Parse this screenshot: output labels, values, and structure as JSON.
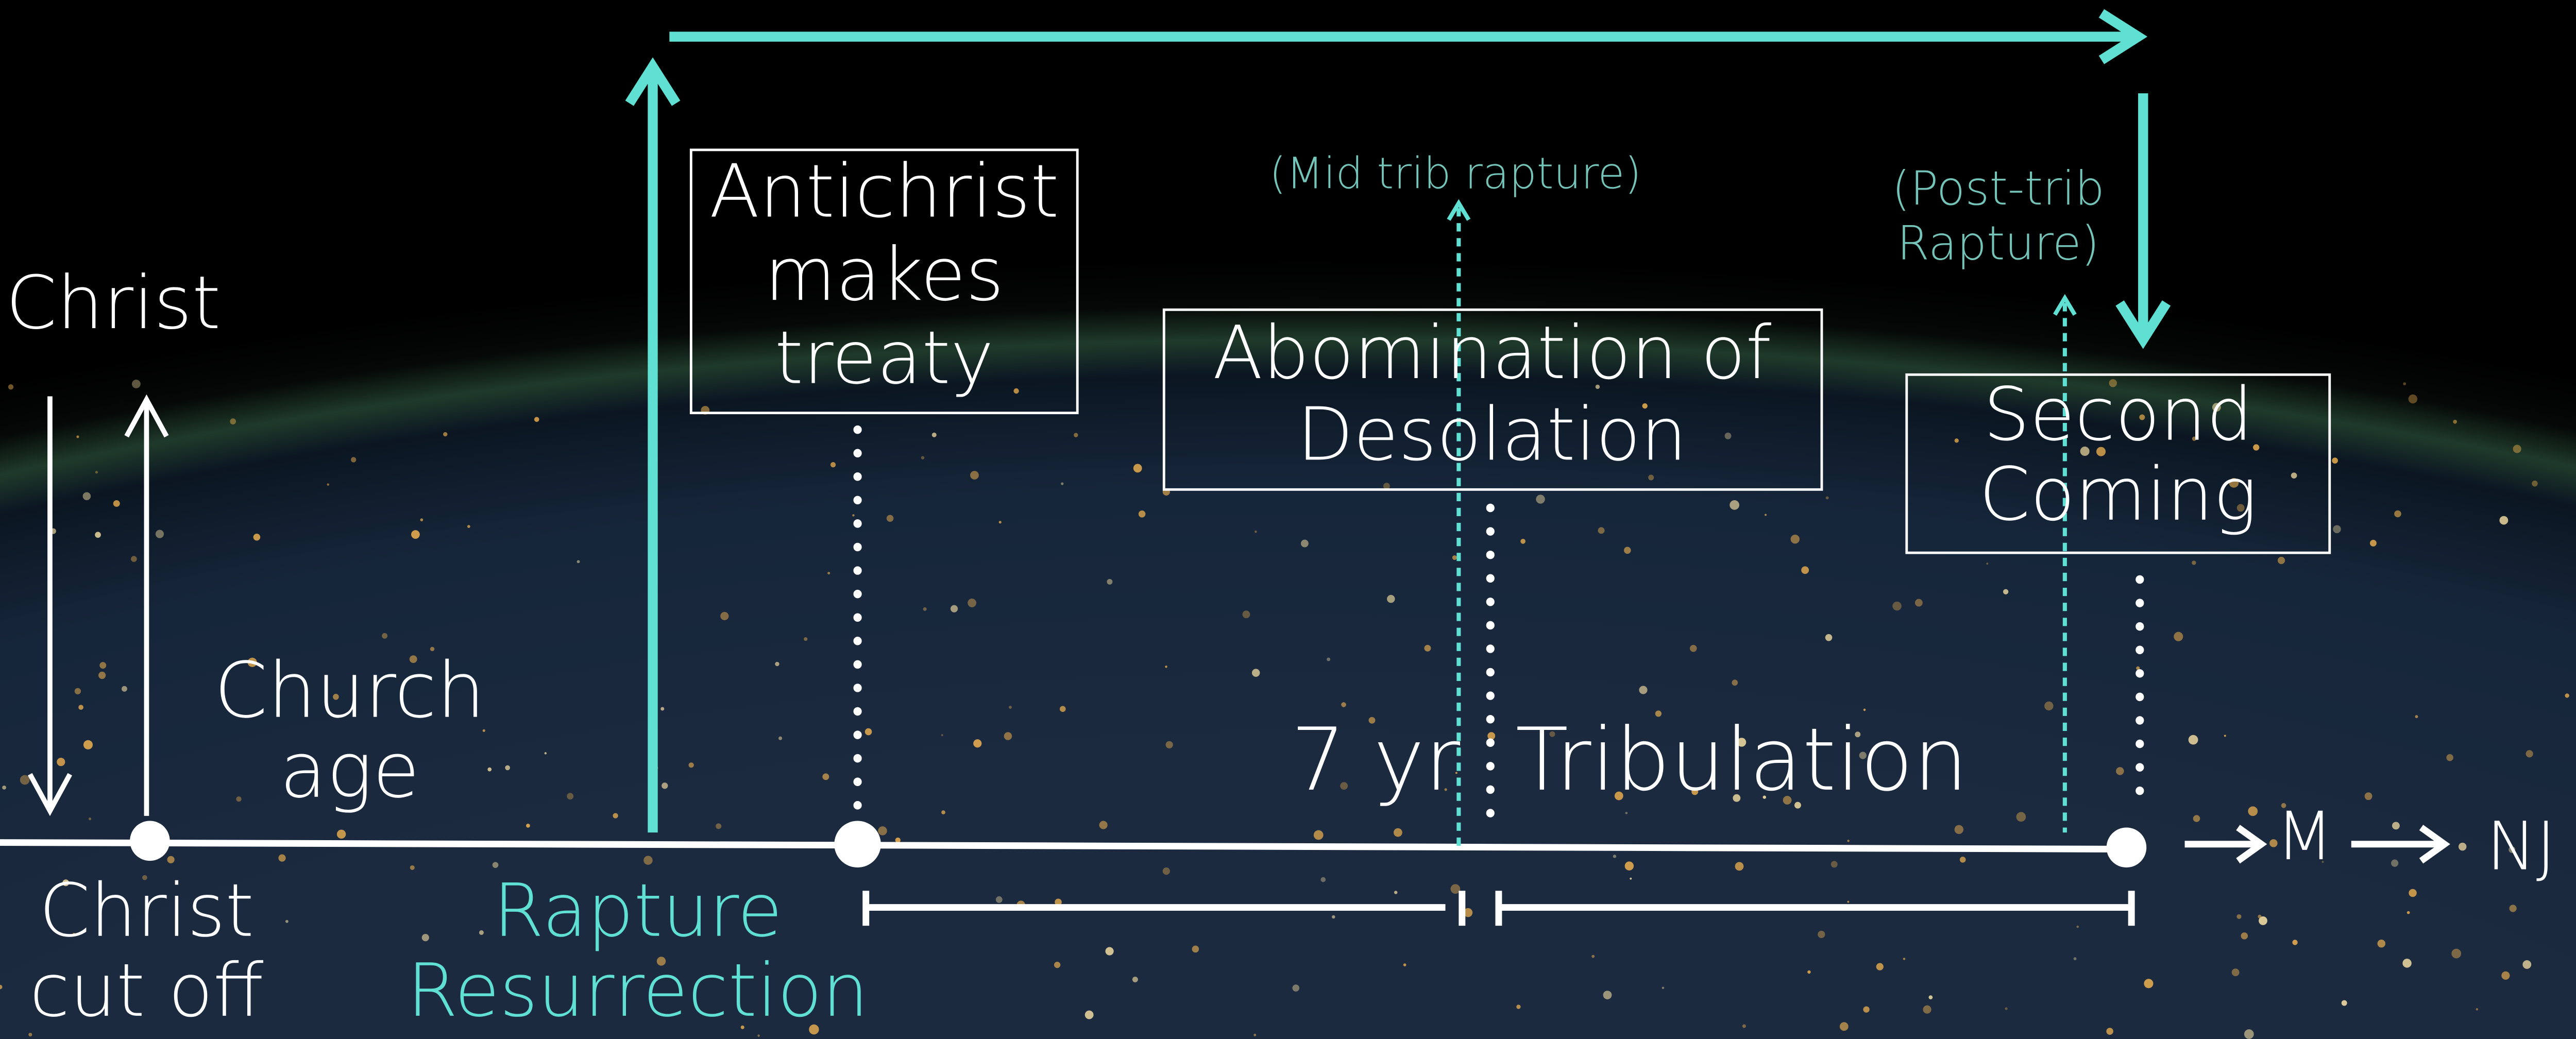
{
  "left": {
    "christ": "Christ",
    "church_age": [
      "Church",
      "age"
    ],
    "christ_cut_off": [
      "Christ",
      "cut off"
    ]
  },
  "rapture": [
    "Rapture",
    "Resurrection"
  ],
  "boxes": [
    {
      "lines": [
        "Antichrist",
        "makes",
        "treaty"
      ]
    },
    {
      "lines": [
        "Abomination of",
        "Desolation"
      ]
    },
    {
      "lines": [
        "Second",
        "Coming"
      ]
    }
  ],
  "mid_trib": "(Mid trib rapture)",
  "post_trib": [
    "(Post-trib",
    "Rapture)"
  ],
  "tribulation": {
    "years": "7 yr",
    "label": "Tribulation"
  },
  "after": [
    "M",
    "NJ"
  ]
}
